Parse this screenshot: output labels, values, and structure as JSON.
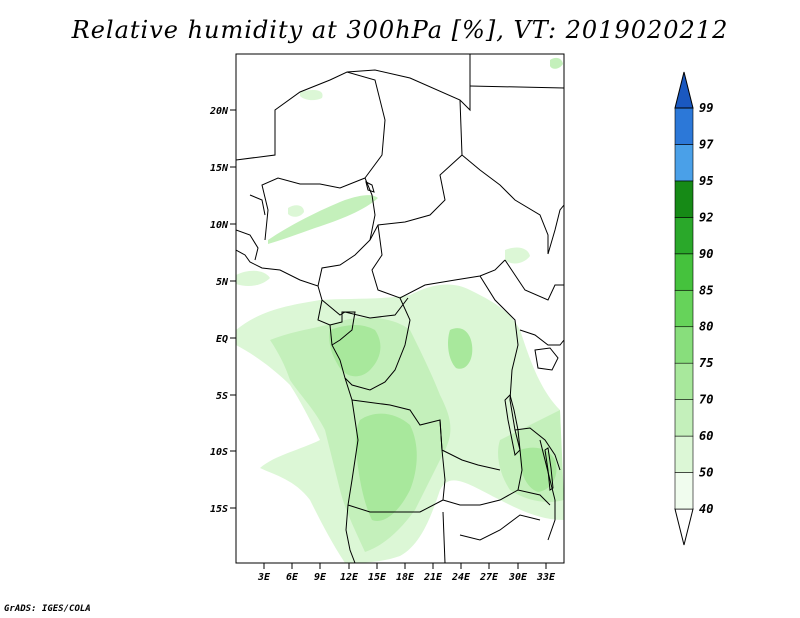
{
  "title": "Relative humidity at 300hPa [%], VT: 2019020212",
  "credit": "GrADS: IGES/COLA",
  "map": {
    "lat_ticks": [
      "20N",
      "15N",
      "10N",
      "5N",
      "EQ",
      "5S",
      "10S",
      "15S"
    ],
    "lon_ticks": [
      "3E",
      "6E",
      "9E",
      "12E",
      "15E",
      "18E",
      "21E",
      "24E",
      "27E",
      "30E",
      "33E"
    ]
  },
  "colorbar": {
    "levels": [
      "40",
      "50",
      "60",
      "70",
      "75",
      "80",
      "85",
      "90",
      "92",
      "95",
      "97",
      "99"
    ],
    "colors": [
      "#f0fcee",
      "#dcf7d6",
      "#c4f0bb",
      "#a8e89c",
      "#88de7c",
      "#66d35a",
      "#45c23d",
      "#2aa82a",
      "#168a16",
      "#4aa0e8",
      "#2c78d8",
      "#1a58c0"
    ]
  }
}
